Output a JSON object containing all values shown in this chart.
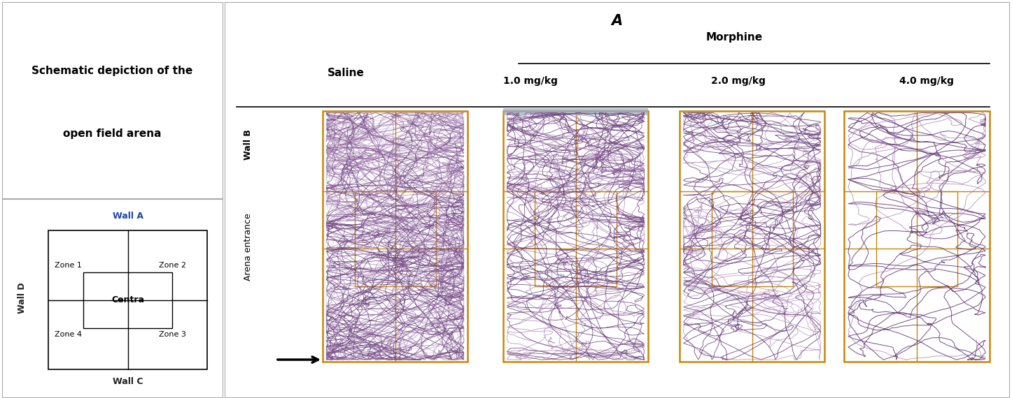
{
  "title_line1": "Schematic depiction of the",
  "title_line2": "open field arena",
  "panel_label": "A",
  "saline_label": "Saline",
  "morphine_label": "Morphine",
  "dose_labels": [
    "1.0 mg/kg",
    "2.0 mg/kg",
    "4.0 mg/kg"
  ],
  "wall_a": "Wall A",
  "wall_b": "Wall B",
  "wall_c": "Wall C",
  "wall_d": "Wall D",
  "zone1": "Zone 1",
  "zone2": "Zone 2",
  "zone3": "Zone 3",
  "zone4": "Zone 4",
  "central": "Centra",
  "arena_entrance": "Arena entrance",
  "orange": "#C8860A",
  "purple_dark": "#5C3070",
  "purple_mid": "#8B5A9A",
  "purple_light": "#B090C0",
  "blue_bar": "#8899BB",
  "black": "#000000",
  "white": "#FFFFFF",
  "gray_line": "#777777"
}
